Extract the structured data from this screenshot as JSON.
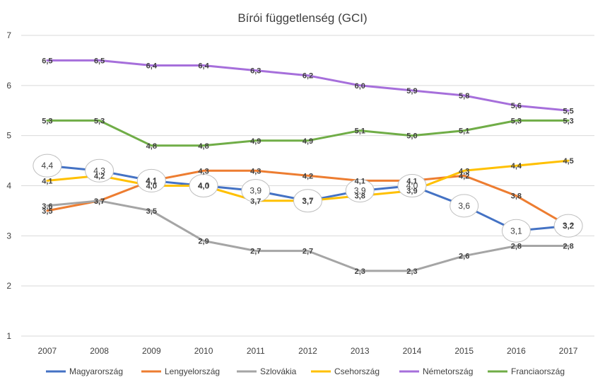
{
  "chart_data": {
    "type": "line",
    "title": "Bírói függetlenség (GCI)",
    "xlabel": "",
    "ylabel": "",
    "categories": [
      "2007",
      "2008",
      "2009",
      "2010",
      "2011",
      "2012",
      "2013",
      "2014",
      "2015",
      "2016",
      "2017"
    ],
    "y_ticks": [
      "1",
      "2",
      "3",
      "4",
      "5",
      "6",
      "7"
    ],
    "ylim": [
      1,
      7
    ],
    "grid": true,
    "legend_position": "bottom",
    "series": [
      {
        "name": "Magyarország",
        "color": "#4472C4",
        "values": [
          4.4,
          4.3,
          4.1,
          4.0,
          3.9,
          3.7,
          3.9,
          4.0,
          3.6,
          3.1,
          3.2
        ],
        "labels": [
          "4,4",
          "4,3",
          "4,1",
          "4,0",
          "3,9",
          "3,7",
          "3,9",
          "4,0",
          "3,6",
          "3,1",
          "3,2"
        ],
        "circled": true
      },
      {
        "name": "Lengyelország",
        "color": "#ED7D31",
        "values": [
          3.5,
          3.7,
          4.1,
          4.3,
          4.3,
          4.2,
          4.1,
          4.1,
          4.2,
          3.8,
          3.2
        ],
        "labels": [
          "3,5",
          "3,7",
          "4,1",
          "4,3",
          "4,3",
          "4,2",
          "4,1",
          "4,1",
          "4,2",
          "3,8",
          "3,2"
        ]
      },
      {
        "name": "Szlovákia",
        "color": "#A5A5A5",
        "values": [
          3.6,
          3.7,
          3.5,
          2.9,
          2.7,
          2.7,
          2.3,
          2.3,
          2.6,
          2.8,
          2.8
        ],
        "labels": [
          "3,6",
          "3,7",
          "3,5",
          "2,9",
          "2,7",
          "2,7",
          "2,3",
          "2,3",
          "2,6",
          "2,8",
          "2,8"
        ]
      },
      {
        "name": "Csehország",
        "color": "#FFC000",
        "values": [
          4.1,
          4.2,
          4.0,
          4.0,
          3.7,
          3.7,
          3.8,
          3.9,
          4.3,
          4.4,
          4.5
        ],
        "labels": [
          "4,1",
          "4,2",
          "4,0",
          "4,0",
          "3,7",
          "3,7",
          "3,8",
          "3,9",
          "4,3",
          "4,4",
          "4,5"
        ]
      },
      {
        "name": "Németország",
        "color": "#A66FDB",
        "values": [
          6.5,
          6.5,
          6.4,
          6.4,
          6.3,
          6.2,
          6.0,
          5.9,
          5.8,
          5.6,
          5.5
        ],
        "labels": [
          "6,5",
          "6,5",
          "6,4",
          "6,4",
          "6,3",
          "6,2",
          "6,0",
          "5,9",
          "5,8",
          "5,6",
          "5,5"
        ]
      },
      {
        "name": "Franciaország",
        "color": "#70AD47",
        "values": [
          5.3,
          5.3,
          4.8,
          4.8,
          4.9,
          4.9,
          5.1,
          5.0,
          5.1,
          5.3,
          5.3
        ],
        "labels": [
          "5,3",
          "5,3",
          "4,8",
          "4,8",
          "4,9",
          "4,9",
          "5,1",
          "5,0",
          "5,1",
          "5,3",
          "5,3"
        ]
      }
    ]
  }
}
